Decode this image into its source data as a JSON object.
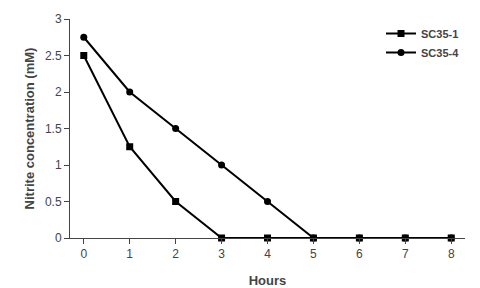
{
  "chart_data": {
    "type": "line",
    "xlabel": "Hours",
    "ylabel": "Nitrite concentration (mM)",
    "x": [
      0,
      1,
      2,
      3,
      4,
      5,
      6,
      7,
      8
    ],
    "series": [
      {
        "name": "SC35-1",
        "color": "#000000",
        "marker": "square",
        "values": [
          2.5,
          1.25,
          0.5,
          0.0,
          0.0,
          0.0,
          0.0,
          0.0,
          0.0
        ]
      },
      {
        "name": "SC35-4",
        "color": "#000000",
        "marker": "circle",
        "values": [
          2.75,
          2.0,
          1.5,
          1.0,
          0.5,
          0.0,
          0.0,
          0.0,
          0.0
        ]
      }
    ],
    "xlim": [
      -0.3,
      8.3
    ],
    "ylim": [
      0,
      3
    ],
    "xticks": [
      0,
      1,
      2,
      3,
      4,
      5,
      6,
      7,
      8
    ],
    "yticks": [
      0,
      0.5,
      1,
      1.5,
      2,
      2.5,
      3
    ],
    "grid": false,
    "legend": "upper right"
  }
}
